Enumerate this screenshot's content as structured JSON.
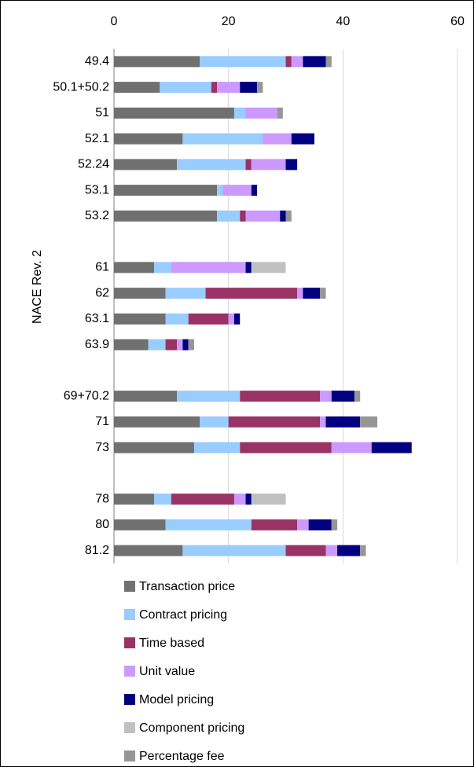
{
  "chart_data": {
    "type": "stacked-bar-horizontal",
    "ylabel": "NACE Rev. 2",
    "categories": [
      "49.4",
      "50.1+50.2",
      "51",
      "52.1",
      "52.24",
      "53.1",
      "53.2",
      null,
      "61",
      "62",
      "63.1",
      "63.9",
      null,
      "69+70.2",
      "71",
      "73",
      null,
      "78",
      "80",
      "81.2"
    ],
    "xlim": [
      0,
      60
    ],
    "xticks": [
      0,
      20,
      40,
      60
    ],
    "grid": true,
    "series": [
      {
        "name": "Transaction price",
        "color": "#707070",
        "values": [
          15,
          8,
          21,
          12,
          11,
          18,
          18,
          null,
          7,
          9,
          9,
          6,
          null,
          11,
          15,
          14,
          null,
          7,
          9,
          12
        ]
      },
      {
        "name": "Contract pricing",
        "color": "#99ccff",
        "values": [
          15,
          9,
          2,
          14,
          12,
          1,
          4,
          null,
          3,
          7,
          4,
          3,
          null,
          11,
          5,
          8,
          null,
          3,
          15,
          18
        ]
      },
      {
        "name": "Time based",
        "color": "#993366",
        "values": [
          1,
          1,
          0,
          0,
          1,
          0,
          1,
          null,
          0,
          16,
          7,
          2,
          null,
          14,
          16,
          16,
          null,
          11,
          8,
          7
        ]
      },
      {
        "name": "Unit value",
        "color": "#cc99ff",
        "values": [
          2,
          4,
          5.5,
          5,
          6,
          5,
          6,
          null,
          13,
          1,
          1,
          1,
          null,
          2,
          1,
          7,
          null,
          2,
          2,
          2
        ]
      },
      {
        "name": "Model pricing",
        "color": "#000080",
        "values": [
          4,
          3,
          0,
          4,
          2,
          1,
          1,
          null,
          1,
          3,
          1,
          1,
          null,
          4,
          6,
          7,
          null,
          1,
          4,
          4
        ]
      },
      {
        "name": "Component pricing",
        "color": "#c0c0c0",
        "values": [
          0,
          0,
          0,
          0,
          0,
          0,
          0,
          null,
          6,
          0,
          0,
          0,
          null,
          0,
          0,
          0,
          null,
          6,
          0,
          0
        ]
      },
      {
        "name": "Percentage fee",
        "color": "#969696",
        "values": [
          1,
          1,
          1,
          0,
          0,
          0,
          1,
          null,
          0,
          1,
          0,
          1,
          null,
          1,
          3,
          0,
          null,
          0,
          1,
          1
        ]
      }
    ]
  }
}
